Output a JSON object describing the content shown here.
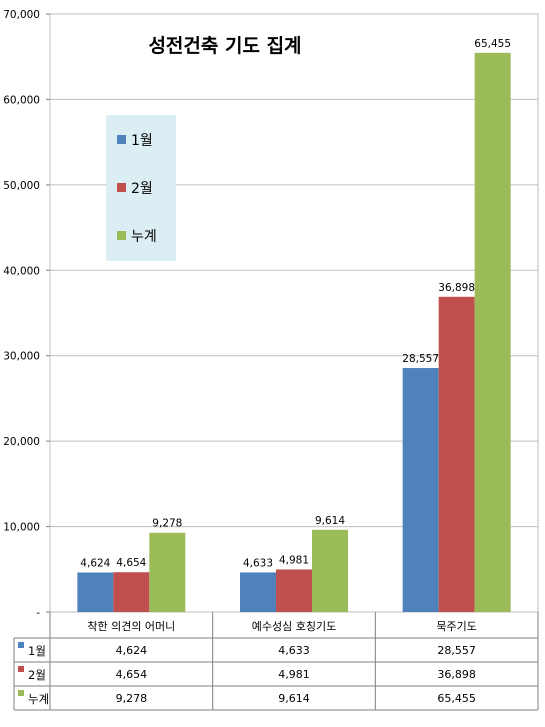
{
  "chart_data": {
    "type": "bar",
    "title": "성전건축 기도 집계",
    "categories": [
      "착한 의견의 어머니",
      "예수성심 호칭기도",
      "묵주기도"
    ],
    "series": [
      {
        "name": "1월",
        "color": "#4f81bd",
        "values": [
          4624,
          4633,
          28557
        ]
      },
      {
        "name": "2월",
        "color": "#c0504d",
        "values": [
          4654,
          4981,
          36898
        ]
      },
      {
        "name": "누계",
        "color": "#9bbb59",
        "values": [
          9278,
          9614,
          65455
        ]
      }
    ],
    "data_labels": {
      "1월": [
        "4,624",
        "4,633",
        "28,557"
      ],
      "2월": [
        "4,654",
        "4,981",
        "36,898"
      ],
      "누계": [
        "9,278",
        "9,614",
        "65,455"
      ]
    },
    "ylim": [
      0,
      70000
    ],
    "y_ticks": [
      0,
      10000,
      20000,
      30000,
      40000,
      50000,
      60000,
      70000
    ],
    "y_tick_labels": [
      "-",
      "10,000",
      "20,000",
      "30,000",
      "40,000",
      "50,000",
      "60,000",
      "70,000"
    ],
    "xlabel": "",
    "ylabel": "",
    "grid": true,
    "legend_position": "upper-left inside",
    "legend_background": "#dbeef4",
    "data_table": true
  }
}
